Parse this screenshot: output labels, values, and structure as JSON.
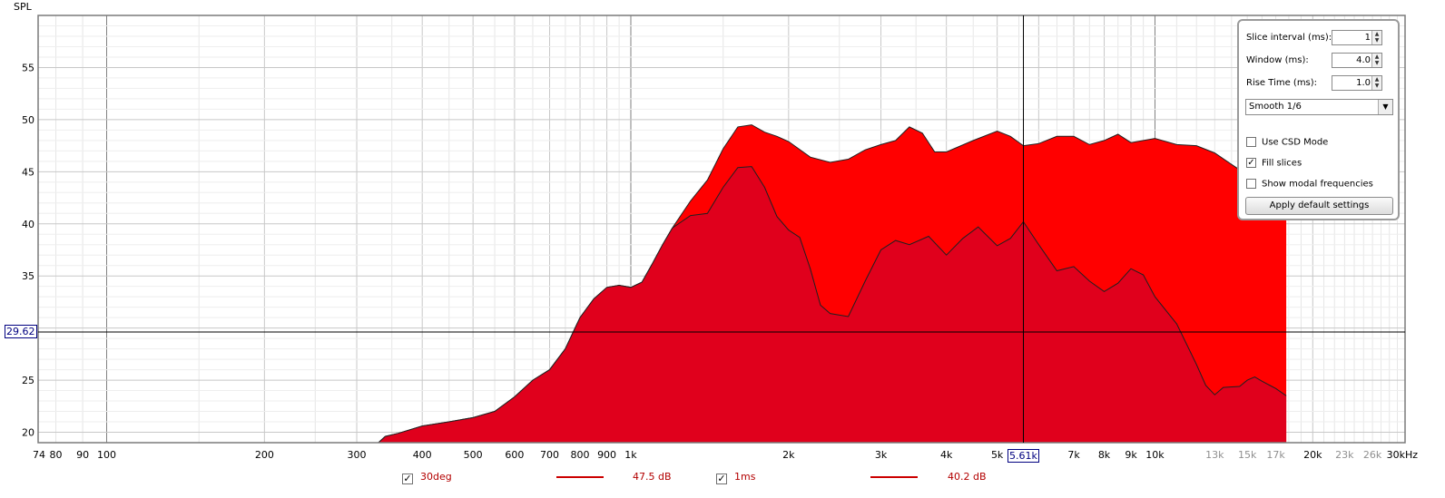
{
  "chart_data": {
    "type": "area",
    "ylabel": "SPL",
    "xlabel": "",
    "xscale": "log",
    "xlim": [
      74,
      30000
    ],
    "ylim": [
      19,
      60
    ],
    "y_ticks": [
      20,
      25,
      35,
      40,
      45,
      50,
      55
    ],
    "x_tick_labels": [
      {
        "f": 74,
        "t": "74"
      },
      {
        "f": 80,
        "t": "80"
      },
      {
        "f": 90,
        "t": "90"
      },
      {
        "f": 100,
        "t": "100"
      },
      {
        "f": 200,
        "t": "200"
      },
      {
        "f": 300,
        "t": "300"
      },
      {
        "f": 400,
        "t": "400"
      },
      {
        "f": 500,
        "t": "500"
      },
      {
        "f": 600,
        "t": "600"
      },
      {
        "f": 700,
        "t": "700"
      },
      {
        "f": 800,
        "t": "800"
      },
      {
        "f": 900,
        "t": "900"
      },
      {
        "f": 1000,
        "t": "1k"
      },
      {
        "f": 2000,
        "t": "2k"
      },
      {
        "f": 3000,
        "t": "3k"
      },
      {
        "f": 4000,
        "t": "4k"
      },
      {
        "f": 5000,
        "t": "5k"
      },
      {
        "f": 7000,
        "t": "7k"
      },
      {
        "f": 8000,
        "t": "8k"
      },
      {
        "f": 9000,
        "t": "9k"
      },
      {
        "f": 10000,
        "t": "10k"
      },
      {
        "f": 13000,
        "t": "13k",
        "grey": true
      },
      {
        "f": 15000,
        "t": "15k",
        "grey": true
      },
      {
        "f": 17000,
        "t": "17k",
        "grey": true
      },
      {
        "f": 20000,
        "t": "20k"
      },
      {
        "f": 23000,
        "t": "23k",
        "grey": true
      },
      {
        "f": 26000,
        "t": "26k",
        "grey": true
      },
      {
        "f": 30000,
        "t": "30kHz"
      }
    ],
    "cursor": {
      "x_label": "5.61k",
      "x": 5610,
      "y_label": "29.62",
      "y": 29.62
    },
    "series": [
      {
        "name": "30deg",
        "color": "#ff0000",
        "points": [
          [
            330,
            19
          ],
          [
            340,
            19.6
          ],
          [
            360,
            19.9
          ],
          [
            400,
            20.6
          ],
          [
            450,
            21.0
          ],
          [
            500,
            21.4
          ],
          [
            550,
            22.0
          ],
          [
            600,
            23.4
          ],
          [
            650,
            25.0
          ],
          [
            700,
            26.0
          ],
          [
            750,
            28.0
          ],
          [
            800,
            31.0
          ],
          [
            850,
            32.8
          ],
          [
            900,
            33.9
          ],
          [
            950,
            34.1
          ],
          [
            1000,
            33.9
          ],
          [
            1050,
            34.4
          ],
          [
            1100,
            36.2
          ],
          [
            1150,
            38.0
          ],
          [
            1200,
            39.6
          ],
          [
            1300,
            42.2
          ],
          [
            1400,
            44.2
          ],
          [
            1500,
            47.2
          ],
          [
            1600,
            49.3
          ],
          [
            1700,
            49.5
          ],
          [
            1800,
            48.8
          ],
          [
            1900,
            48.4
          ],
          [
            2000,
            47.9
          ],
          [
            2200,
            46.4
          ],
          [
            2400,
            45.9
          ],
          [
            2600,
            46.2
          ],
          [
            2800,
            47.1
          ],
          [
            3000,
            47.6
          ],
          [
            3200,
            48.0
          ],
          [
            3400,
            49.3
          ],
          [
            3600,
            48.7
          ],
          [
            3800,
            46.9
          ],
          [
            4000,
            46.9
          ],
          [
            4500,
            48.0
          ],
          [
            5000,
            48.9
          ],
          [
            5300,
            48.4
          ],
          [
            5610,
            47.5
          ],
          [
            6000,
            47.7
          ],
          [
            6500,
            48.4
          ],
          [
            7000,
            48.4
          ],
          [
            7500,
            47.6
          ],
          [
            8000,
            48.0
          ],
          [
            8500,
            48.6
          ],
          [
            9000,
            47.8
          ],
          [
            9500,
            48.0
          ],
          [
            10000,
            48.2
          ],
          [
            11000,
            47.6
          ],
          [
            12000,
            47.5
          ],
          [
            13000,
            46.8
          ],
          [
            14000,
            45.7
          ],
          [
            15000,
            44.7
          ],
          [
            16000,
            44.0
          ],
          [
            17000,
            43.0
          ],
          [
            17800,
            42.5
          ],
          [
            17800,
            19
          ]
        ]
      },
      {
        "name": "1ms",
        "color": "#e0001c",
        "points": [
          [
            330,
            19
          ],
          [
            340,
            19.6
          ],
          [
            360,
            19.9
          ],
          [
            400,
            20.6
          ],
          [
            450,
            21.0
          ],
          [
            500,
            21.4
          ],
          [
            550,
            22.0
          ],
          [
            600,
            23.4
          ],
          [
            650,
            25.0
          ],
          [
            700,
            26.0
          ],
          [
            750,
            28.0
          ],
          [
            800,
            31.0
          ],
          [
            850,
            32.8
          ],
          [
            900,
            33.9
          ],
          [
            950,
            34.1
          ],
          [
            1000,
            33.9
          ],
          [
            1050,
            34.4
          ],
          [
            1100,
            36.2
          ],
          [
            1150,
            38.0
          ],
          [
            1200,
            39.6
          ],
          [
            1300,
            40.8
          ],
          [
            1400,
            41.0
          ],
          [
            1500,
            43.5
          ],
          [
            1600,
            45.4
          ],
          [
            1700,
            45.5
          ],
          [
            1800,
            43.5
          ],
          [
            1900,
            40.7
          ],
          [
            2000,
            39.4
          ],
          [
            2100,
            38.7
          ],
          [
            2200,
            35.7
          ],
          [
            2300,
            32.2
          ],
          [
            2400,
            31.4
          ],
          [
            2600,
            31.1
          ],
          [
            2800,
            34.5
          ],
          [
            3000,
            37.5
          ],
          [
            3200,
            38.4
          ],
          [
            3400,
            38.0
          ],
          [
            3700,
            38.8
          ],
          [
            4000,
            37.0
          ],
          [
            4300,
            38.6
          ],
          [
            4600,
            39.7
          ],
          [
            5000,
            37.9
          ],
          [
            5300,
            38.6
          ],
          [
            5610,
            40.2
          ],
          [
            6000,
            38.0
          ],
          [
            6500,
            35.5
          ],
          [
            7000,
            35.9
          ],
          [
            7500,
            34.5
          ],
          [
            8000,
            33.5
          ],
          [
            8500,
            34.3
          ],
          [
            9000,
            35.7
          ],
          [
            9500,
            35.1
          ],
          [
            10000,
            33.0
          ],
          [
            11000,
            30.4
          ],
          [
            12000,
            26.5
          ],
          [
            12500,
            24.5
          ],
          [
            13000,
            23.6
          ],
          [
            13500,
            24.3
          ],
          [
            14500,
            24.4
          ],
          [
            15000,
            25.0
          ],
          [
            15500,
            25.3
          ],
          [
            16000,
            24.9
          ],
          [
            17000,
            24.2
          ],
          [
            17800,
            23.5
          ],
          [
            17800,
            19
          ]
        ]
      }
    ],
    "legend": [
      {
        "name": "30deg",
        "value": "47.5 dB",
        "checked": "✓"
      },
      {
        "name": "1ms",
        "value": "40.2 dB",
        "checked": "✓"
      }
    ]
  },
  "panel": {
    "slice_interval_label": "Slice interval (ms):",
    "slice_interval_value": "1",
    "window_label": "Window (ms):",
    "window_value": "4.0",
    "rise_time_label": "Rise Time (ms):",
    "rise_time_value": "1.0",
    "smoothing_value": "Smooth 1/6",
    "use_csd_label": "Use CSD Mode",
    "fill_slices_label": "Fill slices",
    "fill_slices_check": "✓",
    "show_modal_label": "Show modal frequencies",
    "apply_button_label": "Apply default settings"
  }
}
